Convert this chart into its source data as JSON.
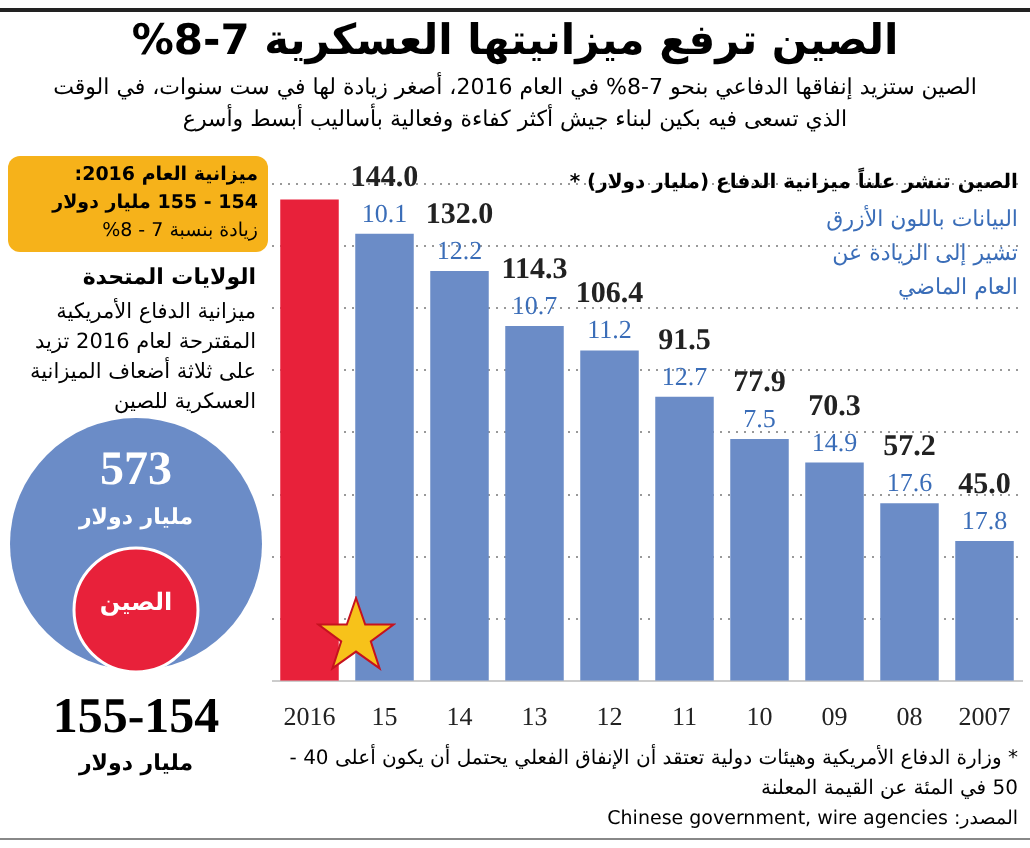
{
  "chart_data": {
    "type": "bar",
    "title": "الصين ترفع ميزانيتها العسكرية 7-8%",
    "subtitle": "الصين ستزيد إنفاقها الدفاعي بنحو 7-8% في العام 2016، أصغر زيادة لها في ست سنوات، في الوقت الذي تسعى فيه بكين لبناء جيش أكثر كفاءة وفعالية بأساليب أبسط وأسرع",
    "categories": [
      "2016",
      "15",
      "14",
      "13",
      "12",
      "11",
      "10",
      "09",
      "08",
      "2007"
    ],
    "values": [
      155,
      144.0,
      132.0,
      114.3,
      106.4,
      91.5,
      77.9,
      70.3,
      57.2,
      45.0
    ],
    "colors": [
      "#e8213a",
      "#6b8cc7",
      "#6b8cc7",
      "#6b8cc7",
      "#6b8cc7",
      "#6b8cc7",
      "#6b8cc7",
      "#6b8cc7",
      "#6b8cc7",
      "#6b8cc7"
    ],
    "value_labels": [
      null,
      "144.0",
      "132.0",
      "114.3",
      "106.4",
      "91.5",
      "77.9",
      "70.3",
      "57.2",
      "45.0"
    ],
    "yticks": [
      {
        "value": 20,
        "label": null
      },
      {
        "value": 40,
        "label": null
      },
      {
        "value": 60,
        "label": null
      },
      {
        "value": 80,
        "label": null
      },
      {
        "value": 100,
        "label": null
      },
      {
        "value": 120,
        "label": null
      },
      {
        "value": 140,
        "label": null
      },
      {
        "value": 160,
        "label": null
      }
    ],
    "grid": "y",
    "tick_labels": "x",
    "annotations": [
      "ميزانية العام 2016:",
      "154 - 155 مليار دولار",
      "زيادة بنسبة 7 - 8%",
      "الولايات المتحدة",
      "ميزانية الدفاع الأمريكية المقترحة لعام 2016 تزيد على ثلاثة أضعاف الميزانية العسكرية للصين",
      "573",
      "مليار دولار",
      "الصين",
      "155-154",
      "مليار دولار",
      "الصين تنشر علناً ميزانية الدفاع (مليار دولار) *",
      "البيانات باللون الأزرق تشير إلى الزيادة عن العام الماضي",
      "* وزارة الدفاع الأمريكية وهيئات دولية تعتقد أن الإنفاق الفعلي يحتمل أن يكون أعلى 40 - 50 في المئة عن القيمة المعلنة",
      "المصدر: Chinese government, wire agencies",
      {
        "text": "10.1",
        "x": "15",
        "y": 144.0
      },
      {
        "text": "12.2",
        "x": "14",
        "y": 132.0
      },
      {
        "text": "10.7",
        "x": "13",
        "y": 114.3
      },
      {
        "text": "11.2",
        "x": "12",
        "y": 106.4
      },
      {
        "text": "12.7",
        "x": "11",
        "y": 91.5
      },
      {
        "text": "7.5",
        "x": "10",
        "y": 77.9
      },
      {
        "text": "14.9",
        "x": "09",
        "y": 70.3
      },
      {
        "text": "17.6",
        "x": "08",
        "y": 57.2
      },
      {
        "text": "17.8",
        "x": "2007",
        "y": 45.0
      }
    ]
  }
}
